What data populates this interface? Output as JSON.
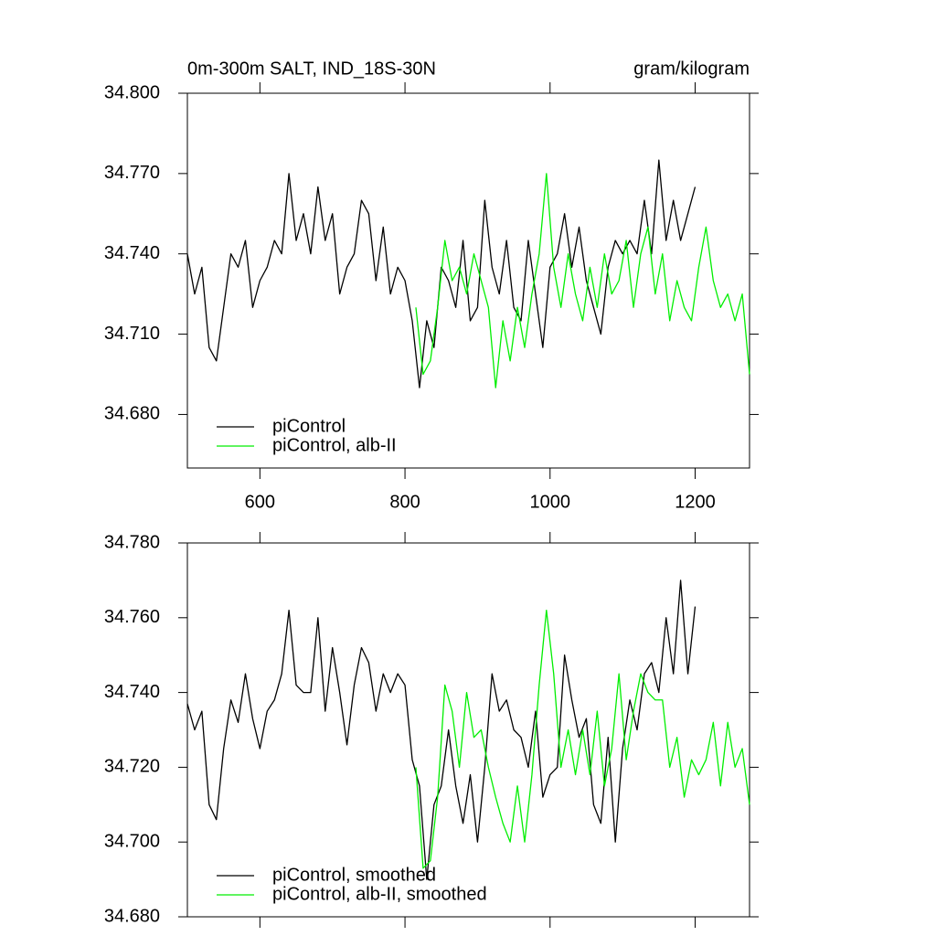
{
  "chart_data": [
    {
      "type": "line",
      "title": "0m-300m SALT, IND_18S-30N",
      "subtitle": "gram/kilogram",
      "xlim": [
        500,
        1275
      ],
      "xticks": [
        600,
        800,
        1000,
        1200
      ],
      "show_xtick_labels": true,
      "ylim": [
        34.66,
        34.8
      ],
      "yticks": [
        {
          "value": 34.68,
          "label": "34.680"
        },
        {
          "value": 34.71,
          "label": "34.710"
        },
        {
          "value": 34.74,
          "label": "34.740"
        },
        {
          "value": 34.77,
          "label": "34.770"
        },
        {
          "value": 34.8,
          "label": "34.800"
        }
      ],
      "legend": "lower left",
      "series": [
        {
          "name": "piControl",
          "color": "#000000",
          "x": [
            500,
            510,
            520,
            530,
            540,
            550,
            560,
            570,
            580,
            590,
            600,
            610,
            620,
            630,
            640,
            650,
            660,
            670,
            680,
            690,
            700,
            710,
            720,
            730,
            740,
            750,
            760,
            770,
            780,
            790,
            800,
            810,
            820,
            830,
            840,
            850,
            860,
            870,
            880,
            890,
            900,
            910,
            920,
            930,
            940,
            950,
            960,
            970,
            980,
            990,
            1000,
            1010,
            1020,
            1030,
            1040,
            1050,
            1060,
            1070,
            1080,
            1090,
            1100,
            1110,
            1120,
            1130,
            1140,
            1150,
            1160,
            1170,
            1180,
            1190,
            1200
          ],
          "values": [
            34.74,
            34.725,
            34.735,
            34.705,
            34.7,
            34.72,
            34.74,
            34.735,
            34.745,
            34.72,
            34.73,
            34.735,
            34.745,
            34.74,
            34.77,
            34.745,
            34.755,
            34.74,
            34.765,
            34.745,
            34.755,
            34.725,
            34.735,
            34.74,
            34.76,
            34.755,
            34.73,
            34.75,
            34.725,
            34.735,
            34.73,
            34.715,
            34.69,
            34.715,
            34.705,
            34.735,
            34.73,
            34.72,
            34.745,
            34.715,
            34.72,
            34.76,
            34.735,
            34.725,
            34.745,
            34.72,
            34.715,
            34.745,
            34.725,
            34.705,
            34.735,
            34.74,
            34.755,
            34.735,
            34.75,
            34.73,
            34.72,
            34.71,
            34.735,
            34.745,
            34.74,
            34.745,
            34.74,
            34.76,
            34.74,
            34.775,
            34.745,
            34.76,
            34.745,
            34.755,
            34.765
          ]
        },
        {
          "name": "piControl, alb-II",
          "color": "#00ee00",
          "x": [
            815,
            825,
            835,
            845,
            855,
            865,
            875,
            885,
            895,
            905,
            915,
            925,
            935,
            945,
            955,
            965,
            975,
            985,
            995,
            1005,
            1015,
            1025,
            1035,
            1045,
            1055,
            1065,
            1075,
            1085,
            1095,
            1105,
            1115,
            1125,
            1135,
            1145,
            1155,
            1165,
            1175,
            1185,
            1195,
            1205,
            1215,
            1225,
            1235,
            1245,
            1255,
            1265,
            1275
          ],
          "values": [
            34.72,
            34.695,
            34.7,
            34.72,
            34.745,
            34.73,
            34.735,
            34.725,
            34.74,
            34.73,
            34.72,
            34.69,
            34.715,
            34.7,
            34.72,
            34.705,
            34.725,
            34.74,
            34.77,
            34.735,
            34.72,
            34.74,
            34.725,
            34.715,
            34.735,
            34.72,
            34.74,
            34.725,
            34.73,
            34.745,
            34.72,
            34.74,
            34.75,
            34.725,
            34.74,
            34.715,
            34.73,
            34.72,
            34.715,
            34.735,
            34.75,
            34.73,
            34.72,
            34.725,
            34.715,
            34.725,
            34.695
          ]
        }
      ]
    },
    {
      "type": "line",
      "xlim": [
        500,
        1275
      ],
      "xticks": [
        600,
        800,
        1000,
        1200
      ],
      "show_xtick_labels": false,
      "ylim": [
        34.68,
        34.78
      ],
      "yticks": [
        {
          "value": 34.68,
          "label": "34.680"
        },
        {
          "value": 34.7,
          "label": "34.700"
        },
        {
          "value": 34.72,
          "label": "34.720"
        },
        {
          "value": 34.74,
          "label": "34.740"
        },
        {
          "value": 34.76,
          "label": "34.760"
        },
        {
          "value": 34.78,
          "label": "34.780"
        }
      ],
      "legend": "lower left",
      "series": [
        {
          "name": "piControl, smoothed",
          "color": "#000000",
          "x": [
            500,
            510,
            520,
            530,
            540,
            550,
            560,
            570,
            580,
            590,
            600,
            610,
            620,
            630,
            640,
            650,
            660,
            670,
            680,
            690,
            700,
            710,
            720,
            730,
            740,
            750,
            760,
            770,
            780,
            790,
            800,
            810,
            820,
            830,
            840,
            850,
            860,
            870,
            880,
            890,
            900,
            910,
            920,
            930,
            940,
            950,
            960,
            970,
            980,
            990,
            1000,
            1010,
            1020,
            1030,
            1040,
            1050,
            1060,
            1070,
            1080,
            1090,
            1100,
            1110,
            1120,
            1130,
            1140,
            1150,
            1160,
            1170,
            1180,
            1190,
            1200
          ],
          "values": [
            34.737,
            34.73,
            34.735,
            34.71,
            34.706,
            34.725,
            34.738,
            34.732,
            34.745,
            34.733,
            34.725,
            34.735,
            34.738,
            34.745,
            34.762,
            34.742,
            34.74,
            34.74,
            34.76,
            34.735,
            34.752,
            34.74,
            34.726,
            34.742,
            34.752,
            34.748,
            34.735,
            34.745,
            34.74,
            34.745,
            34.742,
            34.722,
            34.715,
            34.69,
            34.71,
            34.715,
            34.73,
            34.715,
            34.705,
            34.718,
            34.7,
            34.72,
            34.745,
            34.735,
            34.738,
            34.73,
            34.728,
            34.72,
            34.735,
            34.712,
            34.718,
            34.72,
            34.75,
            34.738,
            34.728,
            34.733,
            34.71,
            34.705,
            34.728,
            34.7,
            34.725,
            34.738,
            34.73,
            34.745,
            34.748,
            34.74,
            34.76,
            34.745,
            34.77,
            34.745,
            34.763
          ]
        },
        {
          "name": "piControl, alb-II, smoothed",
          "color": "#00ee00",
          "x": [
            815,
            825,
            835,
            845,
            855,
            865,
            875,
            885,
            895,
            905,
            915,
            925,
            935,
            945,
            955,
            965,
            975,
            985,
            995,
            1005,
            1015,
            1025,
            1035,
            1045,
            1055,
            1065,
            1075,
            1085,
            1095,
            1105,
            1115,
            1125,
            1135,
            1145,
            1155,
            1165,
            1175,
            1185,
            1195,
            1205,
            1215,
            1225,
            1235,
            1245,
            1255,
            1265,
            1275
          ],
          "values": [
            34.72,
            34.693,
            34.695,
            34.712,
            34.742,
            34.735,
            34.72,
            34.74,
            34.728,
            34.73,
            34.72,
            34.712,
            34.705,
            34.7,
            34.715,
            34.7,
            34.718,
            34.742,
            34.762,
            34.745,
            34.72,
            34.73,
            34.718,
            34.73,
            34.718,
            34.735,
            34.715,
            34.725,
            34.745,
            34.722,
            34.735,
            34.745,
            34.74,
            34.738,
            34.738,
            34.72,
            34.728,
            34.712,
            34.722,
            34.718,
            34.722,
            34.732,
            34.715,
            34.732,
            34.72,
            34.725,
            34.71
          ]
        }
      ]
    }
  ]
}
